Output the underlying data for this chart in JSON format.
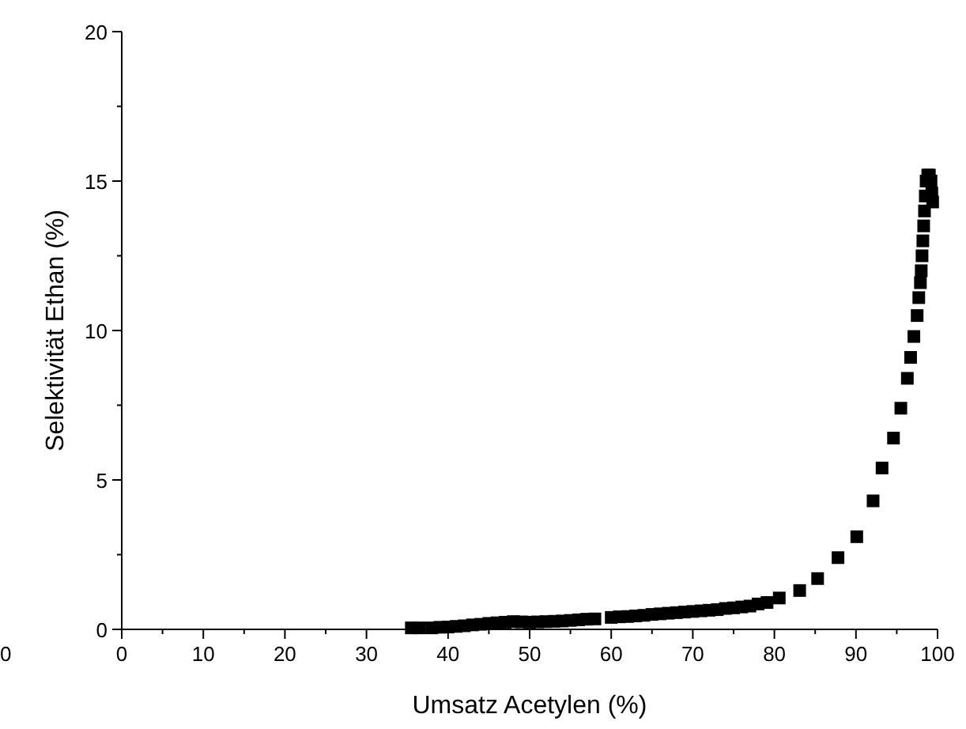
{
  "chart_data": {
    "type": "scatter",
    "xlabel": "Umsatz Acetylen (%)",
    "ylabel": "Selektivität Ethan (%)",
    "marker": "square",
    "grid": false,
    "annotations": [
      "0"
    ],
    "xlim": [
      0,
      100
    ],
    "ylim": [
      0,
      20
    ],
    "xticks": [
      0,
      {
        "value": 5,
        "label": null
      },
      10,
      {
        "value": 15,
        "label": null
      },
      20,
      {
        "value": 25,
        "label": null
      },
      30,
      {
        "value": 35,
        "label": null
      },
      40,
      {
        "value": 45,
        "label": null
      },
      50,
      {
        "value": 55,
        "label": null
      },
      60,
      {
        "value": 65,
        "label": null
      },
      70,
      {
        "value": 75,
        "label": null
      },
      80,
      {
        "value": 85,
        "label": null
      },
      90,
      {
        "value": 95,
        "label": null
      },
      100
    ],
    "yticks": [
      0,
      {
        "value": 2.5,
        "label": null
      },
      5,
      {
        "value": 7.5,
        "label": null
      },
      10,
      {
        "value": 12.5,
        "label": null
      },
      15,
      {
        "value": 17.5,
        "label": null
      },
      20
    ],
    "series": [
      {
        "color": "#000000",
        "x": [
          35.5,
          36.5,
          38,
          39,
          40,
          41,
          42,
          43,
          44,
          45,
          46,
          47,
          48,
          49,
          50,
          51,
          52,
          53,
          54,
          55,
          56,
          57,
          58,
          60,
          61,
          62,
          63,
          64,
          65,
          66,
          67,
          68,
          69,
          70,
          71,
          72,
          73,
          74,
          75,
          76,
          77,
          78,
          79.1,
          80.6,
          83.1,
          85.3,
          87.8,
          90.1,
          92.1,
          93.2,
          94.6,
          95.5,
          96.3,
          96.7,
          97.1,
          97.5,
          97.7,
          97.9,
          98.0,
          98.1,
          98.2,
          98.3,
          98.4,
          98.5,
          98.6,
          98.8,
          99.0,
          99.2,
          99.3,
          99.4
        ],
        "values": [
          0.05,
          0.05,
          0.05,
          0.07,
          0.08,
          0.1,
          0.12,
          0.15,
          0.17,
          0.2,
          0.22,
          0.24,
          0.26,
          0.25,
          0.24,
          0.25,
          0.26,
          0.27,
          0.28,
          0.3,
          0.32,
          0.34,
          0.35,
          0.4,
          0.42,
          0.43,
          0.45,
          0.47,
          0.5,
          0.52,
          0.54,
          0.56,
          0.58,
          0.6,
          0.62,
          0.64,
          0.66,
          0.7,
          0.72,
          0.75,
          0.78,
          0.85,
          0.9,
          1.05,
          1.3,
          1.7,
          2.4,
          3.1,
          4.3,
          5.4,
          6.4,
          7.4,
          8.4,
          9.1,
          9.8,
          10.5,
          11.1,
          11.6,
          12.0,
          12.5,
          13.0,
          13.5,
          14.0,
          14.5,
          15.0,
          15.2,
          15.2,
          15.0,
          14.6,
          14.3
        ]
      }
    ]
  }
}
